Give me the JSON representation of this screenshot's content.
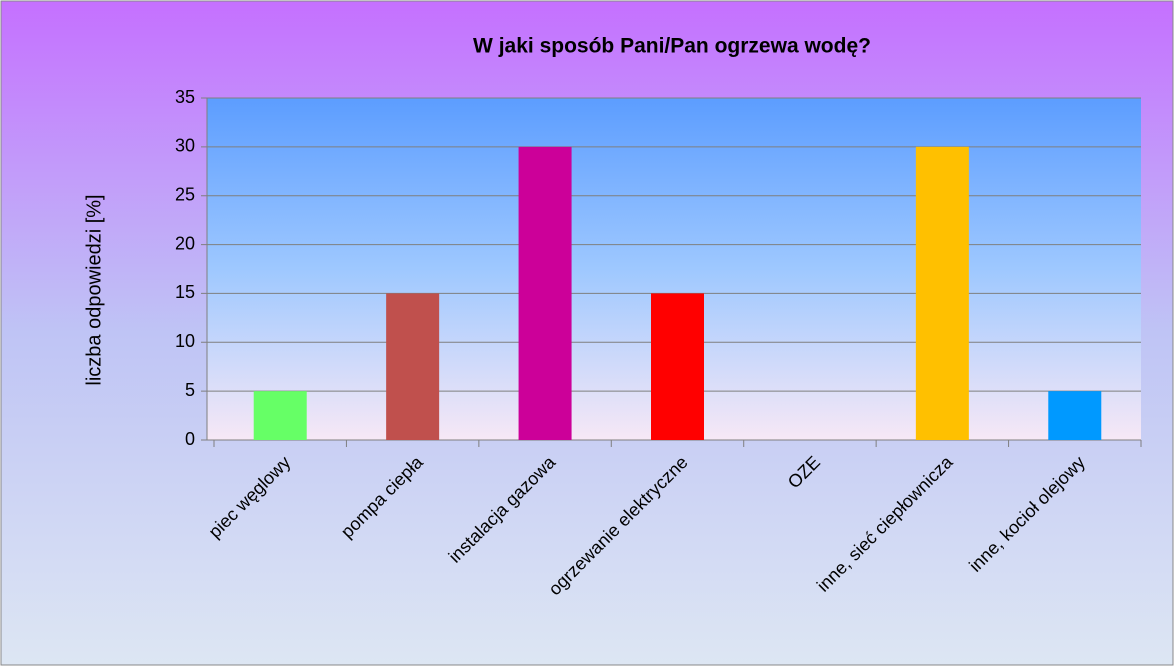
{
  "chart_data": {
    "type": "bar",
    "title": "W jaki sposób Pani/Pan ogrzewa wodę?",
    "y_label": "liczba odpowiedzi [%]",
    "categories": [
      "piec węglowy",
      "pompa ciepła",
      "instalacja gazowa",
      "ogrzewanie elektryczne",
      "OZE",
      "inne, sieć ciepłownicza",
      "inne, kocioł olejowy"
    ],
    "values": [
      5,
      15,
      30,
      15,
      0,
      30,
      5
    ],
    "colors": [
      "#66ff66",
      "#c0504d",
      "#cc0099",
      "#ff0000",
      "#4f81bd",
      "#ffc000",
      "#0099ff"
    ],
    "ylim": [
      0,
      35
    ],
    "yticks": [
      0,
      5,
      10,
      15,
      20,
      25,
      30,
      35
    ],
    "grid": true
  }
}
